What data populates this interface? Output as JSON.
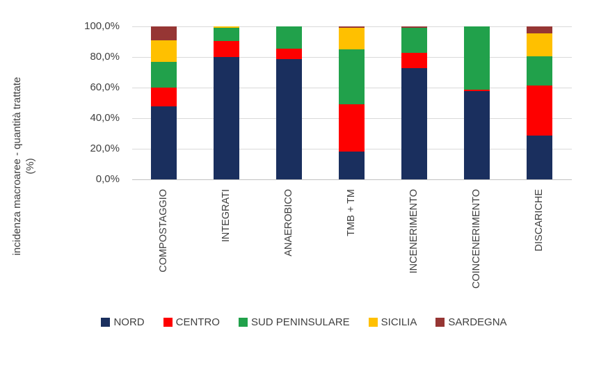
{
  "chart_data": {
    "type": "bar",
    "subtype": "stacked-100-percent",
    "title": "",
    "xlabel": "",
    "ylabel_lines": [
      "incidenza macroaree - quantità trattate",
      "(%)"
    ],
    "ylabel": "incidenza macroaree - quantità trattate (%)",
    "ylim": [
      0,
      100
    ],
    "grid": true,
    "gridline_color": "#d9d9d9",
    "axis_line_color": "#c0c0c0",
    "text_color": "#404040",
    "legend_position": "bottom",
    "ytick_values": [
      0,
      20,
      40,
      60,
      80,
      100
    ],
    "ytick_labels": [
      "0,0%",
      "20,0%",
      "40,0%",
      "60,0%",
      "80,0%",
      "100,0%"
    ],
    "categories": [
      "COMPOSTAGGIO",
      "INTEGRATI",
      "ANAEROBICO",
      "TMB + TM",
      "INCENERIMENTO",
      "COINCENERIMENTO",
      "DISCARICHE"
    ],
    "series": [
      {
        "name": "NORD",
        "color": "#1a2f5e",
        "values": [
          47.5,
          80.0,
          78.5,
          18.0,
          72.5,
          57.5,
          28.5
        ]
      },
      {
        "name": "CENTRO",
        "color": "#fe0000",
        "values": [
          12.5,
          10.5,
          7.0,
          31.0,
          10.0,
          1.0,
          33.0
        ]
      },
      {
        "name": "SUD PENINSULARE",
        "color": "#21a14b",
        "values": [
          17.0,
          8.5,
          14.5,
          36.0,
          16.5,
          41.5,
          19.0
        ]
      },
      {
        "name": "SICILIA",
        "color": "#ffc000",
        "values": [
          14.0,
          1.0,
          0.0,
          14.0,
          0.0,
          0.0,
          15.0
        ]
      },
      {
        "name": "SARDEGNA",
        "color": "#963634",
        "values": [
          9.0,
          0.0,
          0.0,
          1.0,
          1.0,
          0.0,
          4.5
        ]
      }
    ]
  }
}
